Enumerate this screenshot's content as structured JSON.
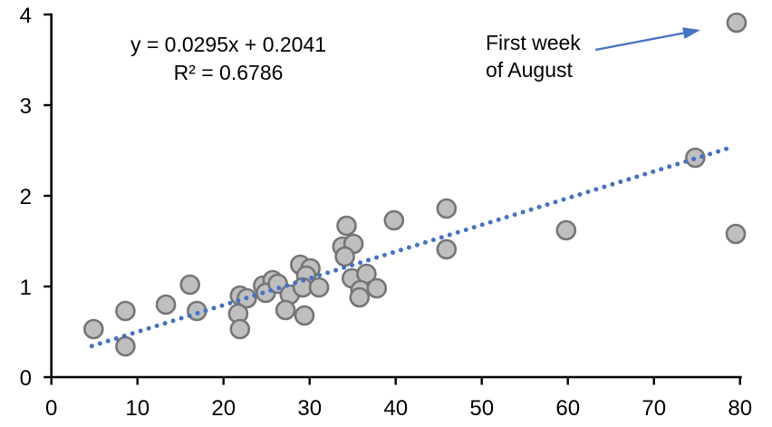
{
  "chart_data": {
    "type": "scatter",
    "title": "",
    "equation": {
      "line1": "y = 0.0295x + 0.2041",
      "line2": "R² = 0.6786"
    },
    "annotation": {
      "line1": "First week",
      "line2": "of August",
      "arrow_from": [
        63.2,
        3.61
      ],
      "arrow_to": [
        75.4,
        3.83
      ],
      "points_at": [
        79.6,
        3.91
      ]
    },
    "xlabel": "",
    "ylabel": "",
    "xlim": [
      0,
      80
    ],
    "ylim": [
      0,
      4
    ],
    "x_ticks": [
      "0",
      "10",
      "20",
      "30",
      "40",
      "50",
      "60",
      "70",
      "80"
    ],
    "y_ticks": [
      "0",
      "1",
      "2",
      "3",
      "4"
    ],
    "grid": "off",
    "legend": "none",
    "points": [
      [
        4.9,
        0.53
      ],
      [
        8.6,
        0.73
      ],
      [
        8.6,
        0.34
      ],
      [
        13.3,
        0.8
      ],
      [
        16.1,
        1.02
      ],
      [
        16.9,
        0.73
      ],
      [
        21.9,
        0.9
      ],
      [
        22.7,
        0.87
      ],
      [
        21.7,
        0.7
      ],
      [
        21.9,
        0.53
      ],
      [
        24.6,
        1.01
      ],
      [
        25.7,
        1.07
      ],
      [
        24.9,
        0.93
      ],
      [
        26.3,
        1.03
      ],
      [
        28.9,
        1.24
      ],
      [
        30.1,
        1.2
      ],
      [
        29.6,
        1.12
      ],
      [
        27.7,
        0.91
      ],
      [
        29.2,
        0.99
      ],
      [
        31.1,
        0.99
      ],
      [
        27.2,
        0.74
      ],
      [
        29.4,
        0.68
      ],
      [
        34.3,
        1.67
      ],
      [
        33.8,
        1.44
      ],
      [
        35.1,
        1.47
      ],
      [
        34.1,
        1.33
      ],
      [
        34.9,
        1.09
      ],
      [
        36.6,
        1.14
      ],
      [
        35.9,
        0.96
      ],
      [
        37.8,
        0.98
      ],
      [
        35.8,
        0.88
      ],
      [
        39.8,
        1.73
      ],
      [
        45.9,
        1.86
      ],
      [
        45.9,
        1.41
      ],
      [
        59.8,
        1.62
      ],
      [
        74.8,
        2.42
      ],
      [
        79.6,
        3.91
      ],
      [
        79.5,
        1.58
      ]
    ],
    "trendline": {
      "type": "linear",
      "slope": 0.0295,
      "intercept": 0.2041,
      "x_start": 4.7,
      "x_end": 78.9,
      "style": "dotted"
    },
    "colors": {
      "marker_fill": "#BFBFBF",
      "marker_stroke": "#757575",
      "trend": "#4472C4",
      "axis": "#000000",
      "text": "#000000"
    }
  }
}
